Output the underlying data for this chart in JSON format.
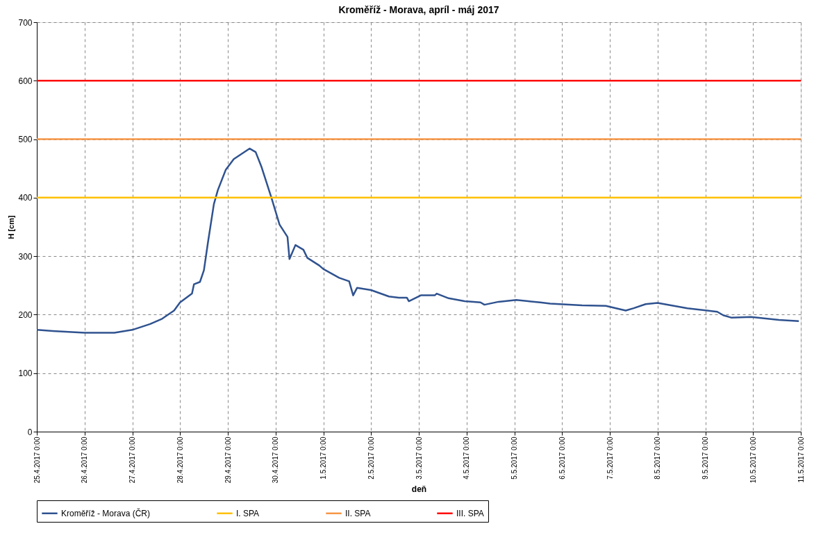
{
  "chart_data": {
    "type": "line",
    "title": "Kroměříž - Morava, apríl - máj 2017",
    "xlabel": "deň",
    "ylabel": "H [cm]",
    "x": [
      "2017-04-25T00:00",
      "2017-04-25T08:00",
      "2017-04-26T00:00",
      "2017-04-26T15:00",
      "2017-04-27T00:00",
      "2017-04-27T09:00",
      "2017-04-27T15:00",
      "2017-04-27T21:00",
      "2017-04-28T00:00",
      "2017-04-28T06:00",
      "2017-04-28T07:00",
      "2017-04-28T10:00",
      "2017-04-28T12:00",
      "2017-04-28T14:00",
      "2017-04-28T17:00",
      "2017-04-28T19:00",
      "2017-04-28T23:00",
      "2017-04-29T03:00",
      "2017-04-29T11:00",
      "2017-04-29T14:00",
      "2017-04-29T17:00",
      "2017-04-29T22:00",
      "2017-04-30T02:00",
      "2017-04-30T06:00",
      "2017-04-30T07:00",
      "2017-04-30T10:00",
      "2017-04-30T14:00",
      "2017-04-30T16:00",
      "2017-04-30T22:00",
      "2017-05-01T00:00",
      "2017-05-01T08:00",
      "2017-05-01T13:00",
      "2017-05-01T15:00",
      "2017-05-01T17:00",
      "2017-05-02T00:00",
      "2017-05-02T09:00",
      "2017-05-02T14:00",
      "2017-05-02T18:00",
      "2017-05-02T19:00",
      "2017-05-03T01:00",
      "2017-05-03T08:00",
      "2017-05-03T09:00",
      "2017-05-03T15:00",
      "2017-05-03T23:00",
      "2017-05-04T07:00",
      "2017-05-04T09:00",
      "2017-05-04T16:00",
      "2017-05-05T01:00",
      "2017-05-05T07:00",
      "2017-05-05T13:00",
      "2017-05-05T18:00",
      "2017-05-06T10:00",
      "2017-05-06T22:00",
      "2017-05-07T08:00",
      "2017-05-07T12:00",
      "2017-05-07T18:00",
      "2017-05-08T00:00",
      "2017-05-08T15:00",
      "2017-05-09T06:00",
      "2017-05-09T09:00",
      "2017-05-09T13:00",
      "2017-05-09T23:00",
      "2017-05-10T13:00",
      "2017-05-10T23:00"
    ],
    "series": [
      {
        "name": "Kroměříž - Morava (ČR)",
        "color": "#2f528f",
        "values": [
          174,
          172,
          169,
          169,
          174,
          184,
          193,
          207,
          221,
          236,
          252,
          256,
          276,
          323,
          389,
          413,
          448,
          466,
          484,
          478,
          452,
          399,
          354,
          333,
          295,
          319,
          311,
          297,
          284,
          278,
          263,
          257,
          233,
          246,
          242,
          231,
          229,
          229,
          223,
          233,
          233,
          236,
          228,
          223,
          221,
          217,
          222,
          225,
          223,
          221,
          219,
          216,
          215,
          207,
          211,
          218,
          220,
          211,
          205,
          199,
          195,
          196,
          191,
          189
        ]
      }
    ],
    "ref_lines": [
      {
        "axis": "y",
        "value": 400,
        "label": "I. SPA",
        "color": "#ffc000"
      },
      {
        "axis": "y",
        "value": 500,
        "label": "II. SPA",
        "color": "#f79646"
      },
      {
        "axis": "y",
        "value": 600,
        "label": "III. SPA",
        "color": "#ff0000"
      }
    ],
    "xlim": [
      "2017-04-25T00:00",
      "2017-05-11T00:00"
    ],
    "xticks": [
      {
        "value": "2017-04-25T00:00",
        "label": "25.4.2017 0:00"
      },
      {
        "value": "2017-04-26T00:00",
        "label": "26.4.2017 0:00"
      },
      {
        "value": "2017-04-27T00:00",
        "label": "27.4.2017 0:00"
      },
      {
        "value": "2017-04-28T00:00",
        "label": "28.4.2017 0:00"
      },
      {
        "value": "2017-04-29T00:00",
        "label": "29.4.2017 0:00"
      },
      {
        "value": "2017-04-30T00:00",
        "label": "30.4.2017 0:00"
      },
      {
        "value": "2017-05-01T00:00",
        "label": "1.5.2017 0:00"
      },
      {
        "value": "2017-05-02T00:00",
        "label": "2.5.2017 0:00"
      },
      {
        "value": "2017-05-03T00:00",
        "label": "3.5.2017 0:00"
      },
      {
        "value": "2017-05-04T00:00",
        "label": "4.5.2017 0:00"
      },
      {
        "value": "2017-05-05T00:00",
        "label": "5.5.2017 0:00"
      },
      {
        "value": "2017-05-06T00:00",
        "label": "6.5.2017 0:00"
      },
      {
        "value": "2017-05-07T00:00",
        "label": "7.5.2017 0:00"
      },
      {
        "value": "2017-05-08T00:00",
        "label": "8.5.2017 0:00"
      },
      {
        "value": "2017-05-09T00:00",
        "label": "9.5.2017 0:00"
      },
      {
        "value": "2017-05-10T00:00",
        "label": "10.5.2017 0:00"
      },
      {
        "value": "2017-05-11T00:00",
        "label": "11.5.2017 0:00"
      }
    ],
    "ylim": [
      0,
      700
    ],
    "yticks": [
      0,
      100,
      200,
      300,
      400,
      500,
      600,
      700
    ],
    "grid": true,
    "legend": "bottom",
    "marker": "none",
    "line_style": "solid"
  }
}
